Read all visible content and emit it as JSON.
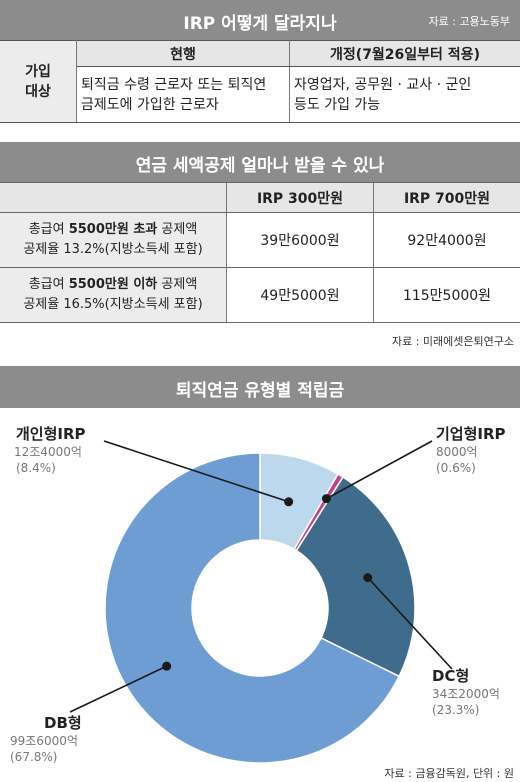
{
  "section1": {
    "title": "IRP 어떻게 달라지나",
    "source": "자료 : 고용노동부",
    "row_label_line1": "가입",
    "row_label_line2": "대상",
    "col_current": "현행",
    "col_revised": "개정(7월26일부터 적용)",
    "current_line1": "퇴직금 수령 근로자 또는 퇴직연",
    "current_line2": "금제도에 가입한 근로자",
    "revised_line1": "자영업자, 공무원 · 교사 · 군인",
    "revised_line2": "등도 가입 가능"
  },
  "section2": {
    "title": "연금 세액공제 얼마나 받을 수 있나",
    "col1": "IRP 300만원",
    "col2": "IRP 700만원",
    "rows": [
      {
        "pre": "총급여 ",
        "bold": "5500만원 초과",
        "post": " 공제액",
        "line2": "공제율 13.2%(지방소득세 포함)",
        "v1": "39만6000원",
        "v2": "92만4000원"
      },
      {
        "pre": "총급여 ",
        "bold": "5500만원 이하",
        "post": " 공제액",
        "line2": "공제율 16.5%(지방소득세 포함)",
        "v1": "49만5000원",
        "v2": "115만5000원"
      }
    ],
    "source": "자료 : 미래에셋은퇴연구소"
  },
  "section3": {
    "title": "퇴직연금 유형별 적립금",
    "source": "자료 : 금융감독원, 단위 : 원"
  },
  "chart_data": {
    "type": "pie",
    "title": "퇴직연금 유형별 적립금",
    "unit": "원",
    "slices": [
      {
        "name": "개인형IRP",
        "amount": "12조4000억",
        "pct_label": "(8.4%)",
        "value": 8.4,
        "color": "#bcd8ec"
      },
      {
        "name": "기업형IRP",
        "amount": "8000억",
        "pct_label": "(0.6%)",
        "value": 0.6,
        "color": "#c0468a"
      },
      {
        "name": "DC형",
        "amount": "34조2000억",
        "pct_label": "(23.3%)",
        "value": 23.3,
        "color": "#3f6b8c"
      },
      {
        "name": "DB형",
        "amount": "99조6000억",
        "pct_label": "(67.8%)",
        "value": 67.8,
        "color": "#6d9dd3"
      }
    ]
  },
  "colors": {
    "header_bar": "#8c8c8c",
    "header_cell": "#e6e6e6"
  }
}
